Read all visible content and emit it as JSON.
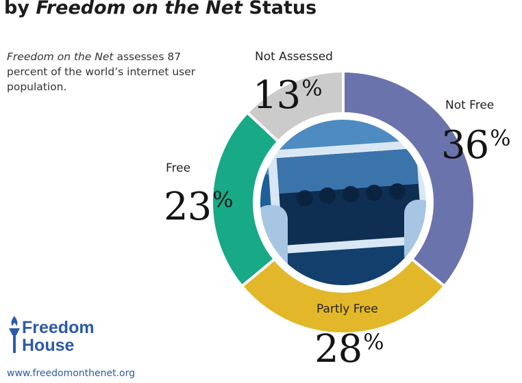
{
  "chart_data": {
    "type": "pie",
    "title_prefix": "by",
    "title_emphasis": "Freedom on the Net",
    "title_suffix": "Status",
    "intro_emphasis": "Freedom on the Net",
    "intro_rest": "assesses 87 percent of the world’s internet user population.",
    "categories": [
      "Not Free",
      "Partly Free",
      "Free",
      "Not Assessed"
    ],
    "values": [
      36,
      28,
      23,
      13
    ],
    "value_labels": [
      "36",
      "28",
      "23",
      "13"
    ],
    "percent_sign": "%",
    "colors": [
      "#6b73ac",
      "#e2b72a",
      "#18a987",
      "#cbcbcb"
    ],
    "center_image": "photo-protest-tablet"
  },
  "branding": {
    "logo_line1": "Freedom",
    "logo_line2": "House",
    "website": "www.freedomonthenet.org"
  }
}
